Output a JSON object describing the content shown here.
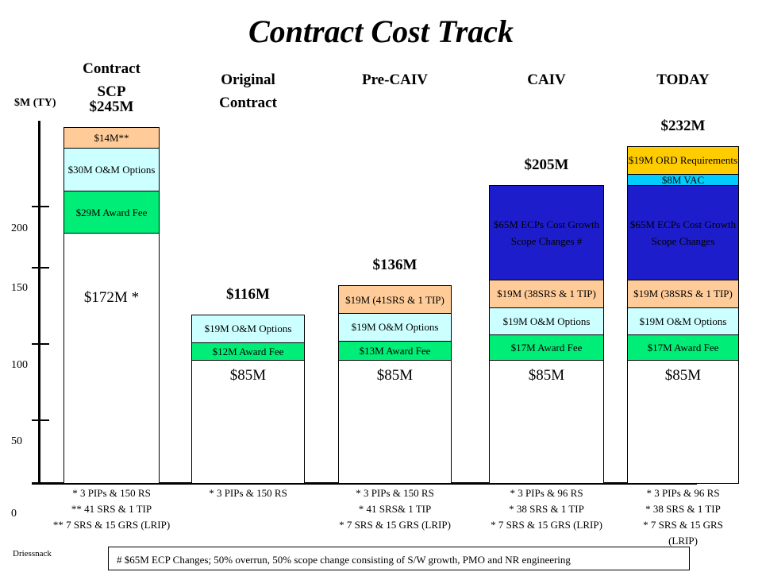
{
  "title": "Contract Cost Track",
  "author": "Driessnack",
  "footnote": "# $65M ECP Changes; 50% overrun, 50% scope change consisting of S/W growth, PMO and NR engineering",
  "chart_data": {
    "type": "bar",
    "stacked": true,
    "ylabel": "$M (TY)",
    "yticks": [
      "0",
      "50",
      "100",
      "150",
      "200"
    ],
    "ylim": [
      0,
      250
    ],
    "columns": [
      {
        "label": "Contract\nSCP",
        "total_label": "$245M",
        "total": 245,
        "segments": [
          {
            "label": "$172M *",
            "value": 172,
            "color": "#ffffff"
          },
          {
            "label": "$29M Award Fee",
            "value": 29,
            "color": "#00ee77"
          },
          {
            "label": "$30M O&M Options",
            "value": 30,
            "color": "#ccffff"
          },
          {
            "label": "$14M**",
            "value": 14,
            "color": "#ffcc99"
          }
        ],
        "notes": [
          "*  3 PIPs & 150 RS",
          "** 41 SRS & 1 TIP",
          "** 7 SRS & 15 GRS (LRIP)"
        ]
      },
      {
        "label": "Original\nContract",
        "total_label": "$116M",
        "total": 116,
        "segments": [
          {
            "label": "$85M",
            "value": 85,
            "color": "#ffffff"
          },
          {
            "label": "$12M Award Fee",
            "value": 12,
            "color": "#00ee77"
          },
          {
            "label": "$19M O&M Options",
            "value": 19,
            "color": "#ccffff"
          }
        ],
        "notes": [
          "*  3 PIPs & 150 RS"
        ]
      },
      {
        "label": "Pre-CAIV",
        "total_label": "$136M",
        "total": 136,
        "segments": [
          {
            "label": "$85M",
            "value": 85,
            "color": "#ffffff"
          },
          {
            "label": "$13M Award Fee",
            "value": 13,
            "color": "#00ee77"
          },
          {
            "label": "$19M O&M Options",
            "value": 19,
            "color": "#ccffff"
          },
          {
            "label": "$19M (41SRS & 1 TIP)",
            "value": 19,
            "color": "#ffcc99"
          }
        ],
        "notes": [
          "*  3 PIPs & 150 RS",
          "* 41 SRS& 1 TIP",
          "* 7 SRS & 15 GRS (LRIP)"
        ]
      },
      {
        "label": "CAIV",
        "total_label": "$205M",
        "total": 205,
        "segments": [
          {
            "label": "$85M",
            "value": 85,
            "color": "#ffffff"
          },
          {
            "label": "$17M Award Fee",
            "value": 17,
            "color": "#00ee77"
          },
          {
            "label": "$19M O&M Options",
            "value": 19,
            "color": "#ccffff"
          },
          {
            "label": "$19M (38SRS & 1 TIP)",
            "value": 19,
            "color": "#ffcc99"
          },
          {
            "label": "$65M ECPs Cost Growth Scope Changes #",
            "value": 65,
            "color": "#1d1dcc"
          }
        ],
        "notes": [
          "*  3 PIPs & 96 RS",
          "* 38 SRS & 1 TIP",
          "* 7 SRS & 15 GRS (LRIP)"
        ]
      },
      {
        "label": "TODAY",
        "total_label": "$232M",
        "total": 232,
        "segments": [
          {
            "label": "$85M",
            "value": 85,
            "color": "#ffffff"
          },
          {
            "label": "$17M Award Fee",
            "value": 17,
            "color": "#00ee77"
          },
          {
            "label": "$19M O&M Options",
            "value": 19,
            "color": "#ccffff"
          },
          {
            "label": "$19M (38SRS & 1 TIP)",
            "value": 19,
            "color": "#ffcc99"
          },
          {
            "label": "$65M ECPs Cost Growth Scope Changes",
            "value": 65,
            "color": "#1d1dcc"
          },
          {
            "label": "$8M VAC",
            "value": 8,
            "color": "#00ccff"
          },
          {
            "label": "$19M ORD Requirements",
            "value": 19,
            "color": "#ffcc00"
          }
        ],
        "notes": [
          "*  3 PIPs & 96 RS",
          "* 38 SRS & 1 TIP",
          "* 7 SRS & 15 GRS",
          "(LRIP)"
        ]
      }
    ]
  }
}
